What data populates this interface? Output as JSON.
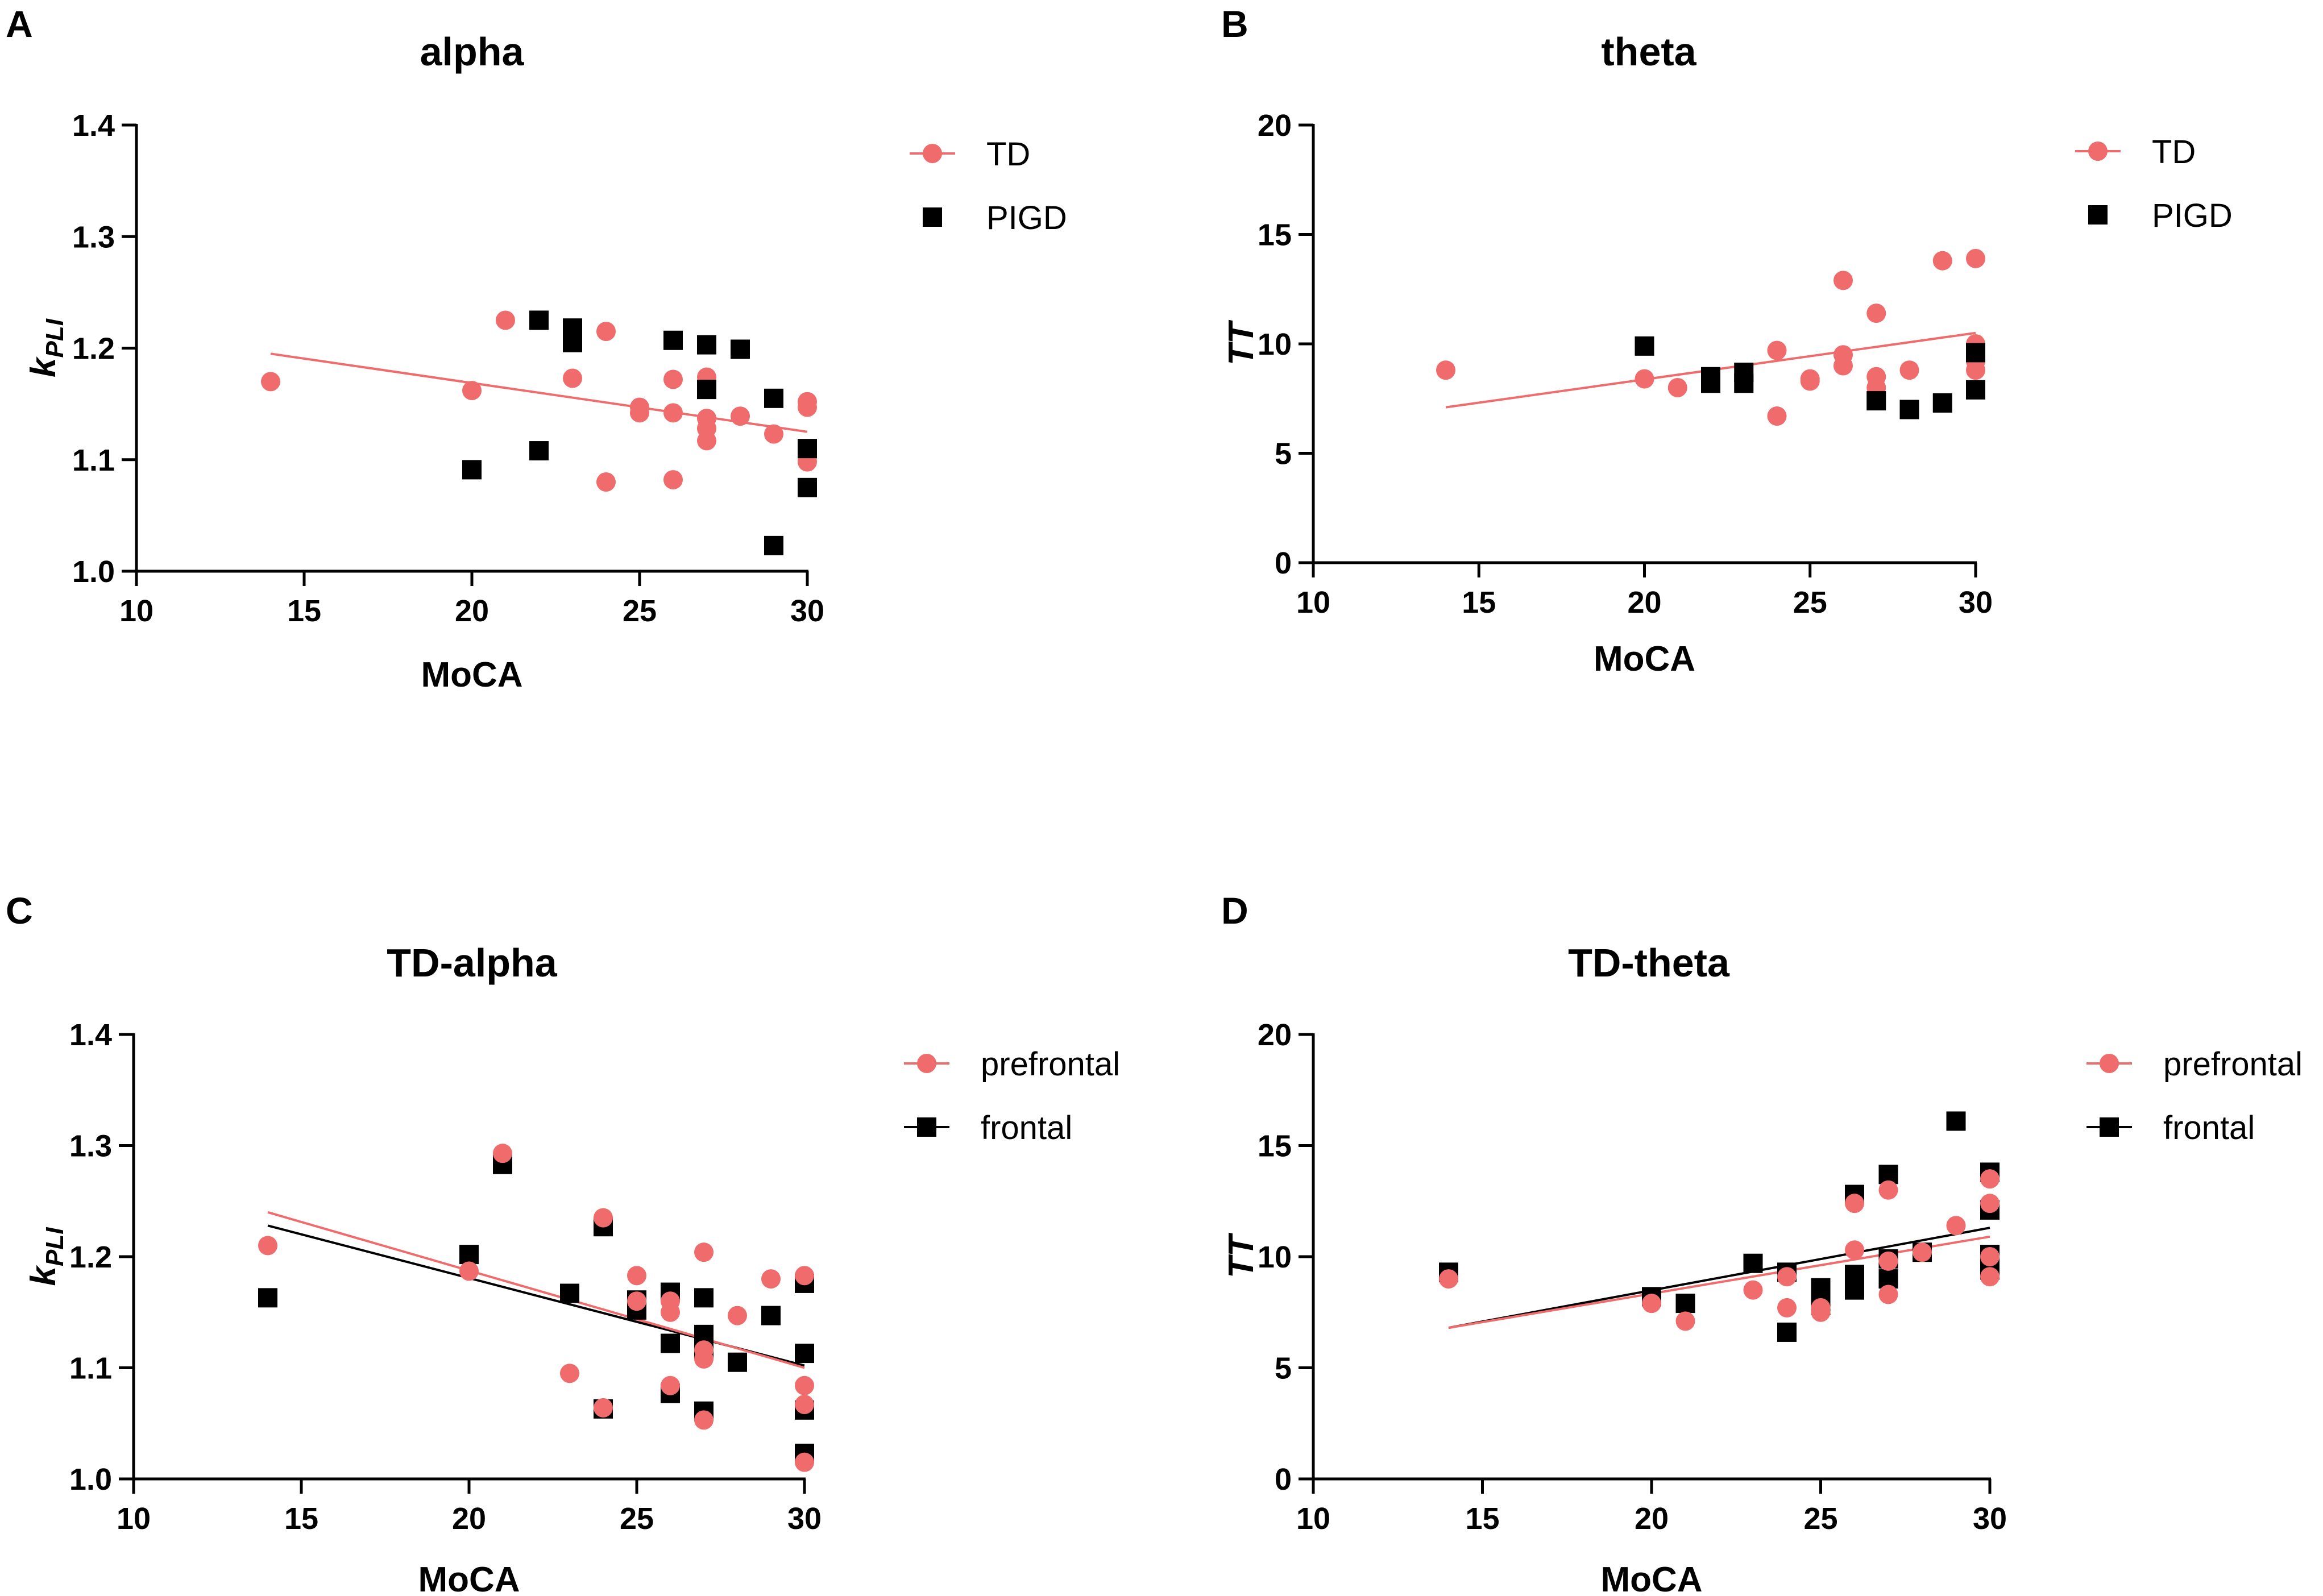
{
  "colors": {
    "td": "#f06b6b",
    "pigd": "#000000",
    "axis": "#000000"
  },
  "chart_data": [
    {
      "panel": "A",
      "type": "scatter",
      "title": "alpha",
      "xlabel": "MoCA",
      "ylabel_main": "k",
      "ylabel_sub": "PLI",
      "xlim": [
        10,
        30
      ],
      "ylim": [
        1.0,
        1.4
      ],
      "xticks": [
        10,
        15,
        20,
        25,
        30
      ],
      "yticks": [
        1.0,
        1.1,
        1.2,
        1.3,
        1.4
      ],
      "yfmt": 1,
      "series": [
        {
          "name": "TD",
          "marker": "circle",
          "color": "#f06b6b",
          "fit": [
            [
              14,
              1.195
            ],
            [
              30,
              1.125
            ]
          ],
          "x": [
            14,
            20,
            21,
            23,
            24,
            24,
            25,
            25,
            26,
            26,
            26,
            27,
            27,
            27,
            27,
            28,
            29,
            30,
            30,
            30,
            30
          ],
          "y": [
            1.17,
            1.162,
            1.225,
            1.173,
            1.215,
            1.08,
            1.147,
            1.142,
            1.172,
            1.142,
            1.082,
            1.174,
            1.137,
            1.128,
            1.117,
            1.139,
            1.123,
            1.152,
            1.147,
            1.102,
            1.098
          ]
        },
        {
          "name": "PIGD",
          "marker": "square",
          "color": "#000000",
          "fit": null,
          "x": [
            20,
            22,
            22,
            23,
            23,
            23,
            26,
            27,
            27,
            28,
            29,
            29,
            30,
            30
          ],
          "y": [
            1.091,
            1.108,
            1.225,
            1.218,
            1.211,
            1.205,
            1.207,
            1.203,
            1.163,
            1.199,
            1.155,
            1.023,
            1.11,
            1.075
          ]
        }
      ],
      "legend": [
        {
          "label": "TD",
          "marker": "circle",
          "color": "#f06b6b"
        },
        {
          "label": "PIGD",
          "marker": "square",
          "color": "#000000"
        }
      ]
    },
    {
      "panel": "B",
      "type": "scatter",
      "title": "theta",
      "xlabel": "MoCA",
      "ylabel_main": "TT",
      "ylabel_sub": "",
      "xlim": [
        10,
        30
      ],
      "ylim": [
        0,
        20
      ],
      "xticks": [
        10,
        15,
        20,
        25,
        30
      ],
      "yticks": [
        0,
        5,
        10,
        15,
        20
      ],
      "yfmt": 0,
      "series": [
        {
          "name": "TD",
          "marker": "circle",
          "color": "#f06b6b",
          "fit": [
            [
              14,
              7.1
            ],
            [
              30,
              10.5
            ]
          ],
          "x": [
            14,
            20,
            21,
            23,
            24,
            24,
            25,
            25,
            26,
            26,
            26,
            27,
            27,
            27,
            28,
            29,
            30,
            30,
            30,
            30
          ],
          "y": [
            8.8,
            8.4,
            8.0,
            8.3,
            9.7,
            6.7,
            8.4,
            8.3,
            12.9,
            9.5,
            9.0,
            11.4,
            8.5,
            8.0,
            8.8,
            13.8,
            13.9,
            10.0,
            9.2,
            8.8
          ]
        },
        {
          "name": "PIGD",
          "marker": "square",
          "color": "#000000",
          "fit": null,
          "x": [
            20,
            22,
            22,
            23,
            23,
            27,
            28,
            29,
            30,
            30
          ],
          "y": [
            9.9,
            8.5,
            8.2,
            8.7,
            8.2,
            7.4,
            7.0,
            7.3,
            9.6,
            7.9
          ]
        }
      ],
      "legend": [
        {
          "label": "TD",
          "marker": "circle",
          "color": "#f06b6b"
        },
        {
          "label": "PIGD",
          "marker": "square",
          "color": "#000000"
        }
      ]
    },
    {
      "panel": "C",
      "type": "scatter",
      "title": "TD-alpha",
      "xlabel": "MoCA",
      "ylabel_main": "k",
      "ylabel_sub": "PLI",
      "xlim": [
        10,
        30
      ],
      "ylim": [
        1.0,
        1.4
      ],
      "xticks": [
        10,
        15,
        20,
        25,
        30
      ],
      "yticks": [
        1.0,
        1.1,
        1.2,
        1.3,
        1.4
      ],
      "yfmt": 1,
      "series": [
        {
          "name": "frontal",
          "marker": "square",
          "color": "#000000",
          "fit": [
            [
              14,
              1.228
            ],
            [
              30,
              1.102
            ]
          ],
          "x": [
            14,
            20,
            21,
            23,
            24,
            24,
            25,
            25,
            26,
            26,
            26,
            27,
            27,
            27,
            27,
            28,
            29,
            30,
            30,
            30,
            30
          ],
          "y": [
            1.163,
            1.202,
            1.283,
            1.167,
            1.227,
            1.063,
            1.161,
            1.152,
            1.168,
            1.122,
            1.077,
            1.163,
            1.13,
            1.117,
            1.061,
            1.105,
            1.147,
            1.176,
            1.113,
            1.062,
            1.023
          ]
        },
        {
          "name": "prefrontal",
          "marker": "circle",
          "color": "#f06b6b",
          "fit": [
            [
              14,
              1.24
            ],
            [
              30,
              1.1
            ]
          ],
          "x": [
            14,
            20,
            21,
            23,
            24,
            24,
            25,
            25,
            26,
            26,
            26,
            27,
            27,
            27,
            27,
            28,
            29,
            30,
            30,
            30,
            30
          ],
          "y": [
            1.21,
            1.187,
            1.293,
            1.095,
            1.235,
            1.064,
            1.183,
            1.16,
            1.15,
            1.16,
            1.084,
            1.204,
            1.116,
            1.108,
            1.053,
            1.147,
            1.18,
            1.183,
            1.084,
            1.067,
            1.015
          ]
        }
      ],
      "legend": [
        {
          "label": "prefrontal",
          "marker": "circle",
          "color": "#f06b6b"
        },
        {
          "label": "frontal",
          "marker": "square",
          "color": "#000000"
        }
      ]
    },
    {
      "panel": "D",
      "type": "scatter",
      "title": "TD-theta",
      "xlabel": "MoCA",
      "ylabel_main": "TT",
      "ylabel_sub": "",
      "xlim": [
        10,
        30
      ],
      "ylim": [
        0,
        20
      ],
      "xticks": [
        10,
        15,
        20,
        25,
        30
      ],
      "yticks": [
        0,
        5,
        10,
        15,
        20
      ],
      "yfmt": 0,
      "series": [
        {
          "name": "frontal",
          "marker": "square",
          "color": "#000000",
          "fit": [
            [
              14,
              6.8
            ],
            [
              30,
              11.3
            ]
          ],
          "x": [
            14,
            20,
            21,
            23,
            24,
            24,
            25,
            25,
            26,
            26,
            26,
            26,
            27,
            27,
            27,
            28,
            29,
            30,
            30,
            30,
            30
          ],
          "y": [
            9.3,
            8.2,
            7.9,
            9.7,
            9.3,
            6.6,
            8.6,
            7.8,
            12.8,
            9.2,
            8.8,
            8.5,
            13.7,
            9.9,
            9.0,
            10.2,
            16.1,
            13.8,
            12.1,
            10.1,
            9.4
          ]
        },
        {
          "name": "prefrontal",
          "marker": "circle",
          "color": "#f06b6b",
          "fit": [
            [
              14,
              6.8
            ],
            [
              30,
              10.9
            ]
          ],
          "x": [
            14,
            20,
            21,
            23,
            24,
            24,
            25,
            25,
            26,
            26,
            27,
            27,
            27,
            28,
            29,
            30,
            30,
            30,
            30
          ],
          "y": [
            9.0,
            7.9,
            7.1,
            8.5,
            9.1,
            7.7,
            7.5,
            7.7,
            12.4,
            10.3,
            13.0,
            9.8,
            8.3,
            10.2,
            11.4,
            13.5,
            12.4,
            10.0,
            9.1
          ]
        }
      ],
      "legend": [
        {
          "label": "prefrontal",
          "marker": "circle",
          "color": "#f06b6b"
        },
        {
          "label": "frontal",
          "marker": "square",
          "color": "#000000"
        }
      ]
    }
  ]
}
